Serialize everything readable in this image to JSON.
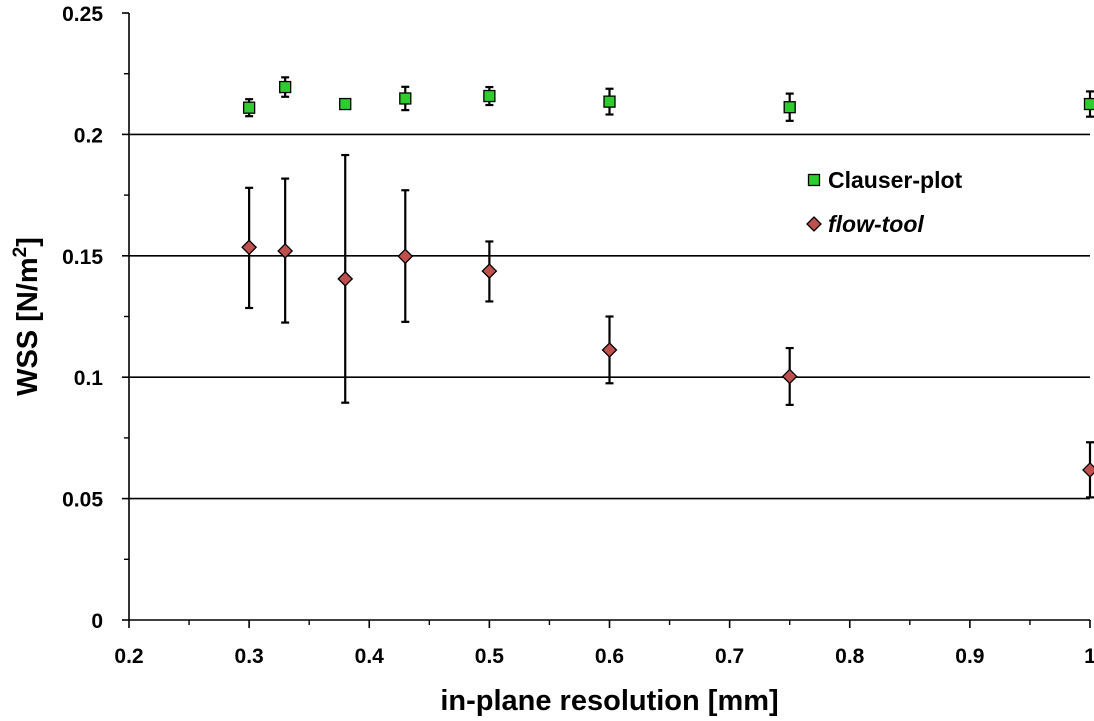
{
  "chart_data": {
    "type": "scatter",
    "title": "",
    "xlabel": "in-plane resolution [mm]",
    "ylabel_main": "WSS [N/m",
    "ylabel_sup": "2",
    "ylabel_end": "]",
    "xlim": [
      0.2,
      1.0
    ],
    "ylim": [
      0,
      0.25
    ],
    "x_ticks": [
      {
        "value": 0.2,
        "label": "0.2"
      },
      {
        "value": 0.3,
        "label": "0.3"
      },
      {
        "value": 0.4,
        "label": "0.4"
      },
      {
        "value": 0.5,
        "label": "0.5"
      },
      {
        "value": 0.6,
        "label": "0.6"
      },
      {
        "value": 0.7,
        "label": "0.7"
      },
      {
        "value": 0.8,
        "label": "0.8"
      },
      {
        "value": 0.9,
        "label": "0.9"
      },
      {
        "value": 1.0,
        "label": "1"
      }
    ],
    "x_minor_ticks": [
      0.25,
      0.35,
      0.45,
      0.55,
      0.65,
      0.75,
      0.85,
      0.95
    ],
    "y_ticks": [
      {
        "value": 0,
        "label": "0"
      },
      {
        "value": 0.05,
        "label": "0.05"
      },
      {
        "value": 0.1,
        "label": "0.1"
      },
      {
        "value": 0.15,
        "label": "0.15"
      },
      {
        "value": 0.2,
        "label": "0.2"
      },
      {
        "value": 0.25,
        "label": "0.25"
      }
    ],
    "y_minor_ticks": [
      0.025,
      0.075,
      0.125,
      0.175,
      0.225
    ],
    "gridlines_y": [
      0.05,
      0.1,
      0.15,
      0.2
    ],
    "legend_position": "right-upper",
    "series": [
      {
        "name": "Clauser-plot",
        "italic": false,
        "marker": "square",
        "color": "#2ecc2e",
        "points": [
          {
            "x": 0.3,
            "y": 0.211,
            "err_low": 0.0035,
            "err_high": 0.0035
          },
          {
            "x": 0.33,
            "y": 0.2195,
            "err_low": 0.004,
            "err_high": 0.004
          },
          {
            "x": 0.38,
            "y": 0.2125,
            "err_low": 0.001,
            "err_high": 0.001
          },
          {
            "x": 0.43,
            "y": 0.2148,
            "err_low": 0.0048,
            "err_high": 0.0048
          },
          {
            "x": 0.5,
            "y": 0.2158,
            "err_low": 0.0037,
            "err_high": 0.0037
          },
          {
            "x": 0.6,
            "y": 0.2135,
            "err_low": 0.0053,
            "err_high": 0.0053
          },
          {
            "x": 0.75,
            "y": 0.2112,
            "err_low": 0.0056,
            "err_high": 0.0056
          },
          {
            "x": 1.0,
            "y": 0.2125,
            "err_low": 0.0052,
            "err_high": 0.0052
          }
        ]
      },
      {
        "name": "flow-tool",
        "italic": true,
        "marker": "diamond",
        "color": "#c0504d",
        "points": [
          {
            "x": 0.3,
            "y": 0.1535,
            "err_low": 0.025,
            "err_high": 0.0245
          },
          {
            "x": 0.33,
            "y": 0.152,
            "err_low": 0.0295,
            "err_high": 0.0298
          },
          {
            "x": 0.38,
            "y": 0.1405,
            "err_low": 0.051,
            "err_high": 0.051
          },
          {
            "x": 0.43,
            "y": 0.1498,
            "err_low": 0.027,
            "err_high": 0.0272
          },
          {
            "x": 0.5,
            "y": 0.1437,
            "err_low": 0.0125,
            "err_high": 0.0122
          },
          {
            "x": 0.6,
            "y": 0.1112,
            "err_low": 0.0137,
            "err_high": 0.0138
          },
          {
            "x": 0.75,
            "y": 0.1003,
            "err_low": 0.0117,
            "err_high": 0.0117
          },
          {
            "x": 1.0,
            "y": 0.0618,
            "err_low": 0.0113,
            "err_high": 0.0114
          }
        ]
      }
    ]
  }
}
